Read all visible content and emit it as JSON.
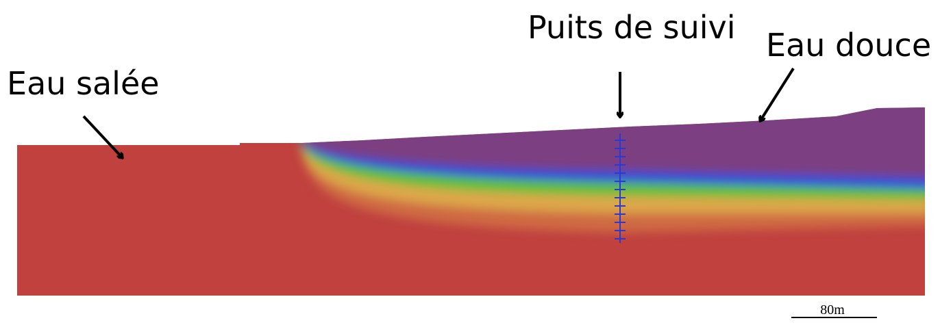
{
  "labels": {
    "salt_water": "Eau salée",
    "monitoring_well": "Puits de suivi",
    "fresh_water": "Eau douce"
  },
  "scale_bar": {
    "label": "80m"
  }
}
